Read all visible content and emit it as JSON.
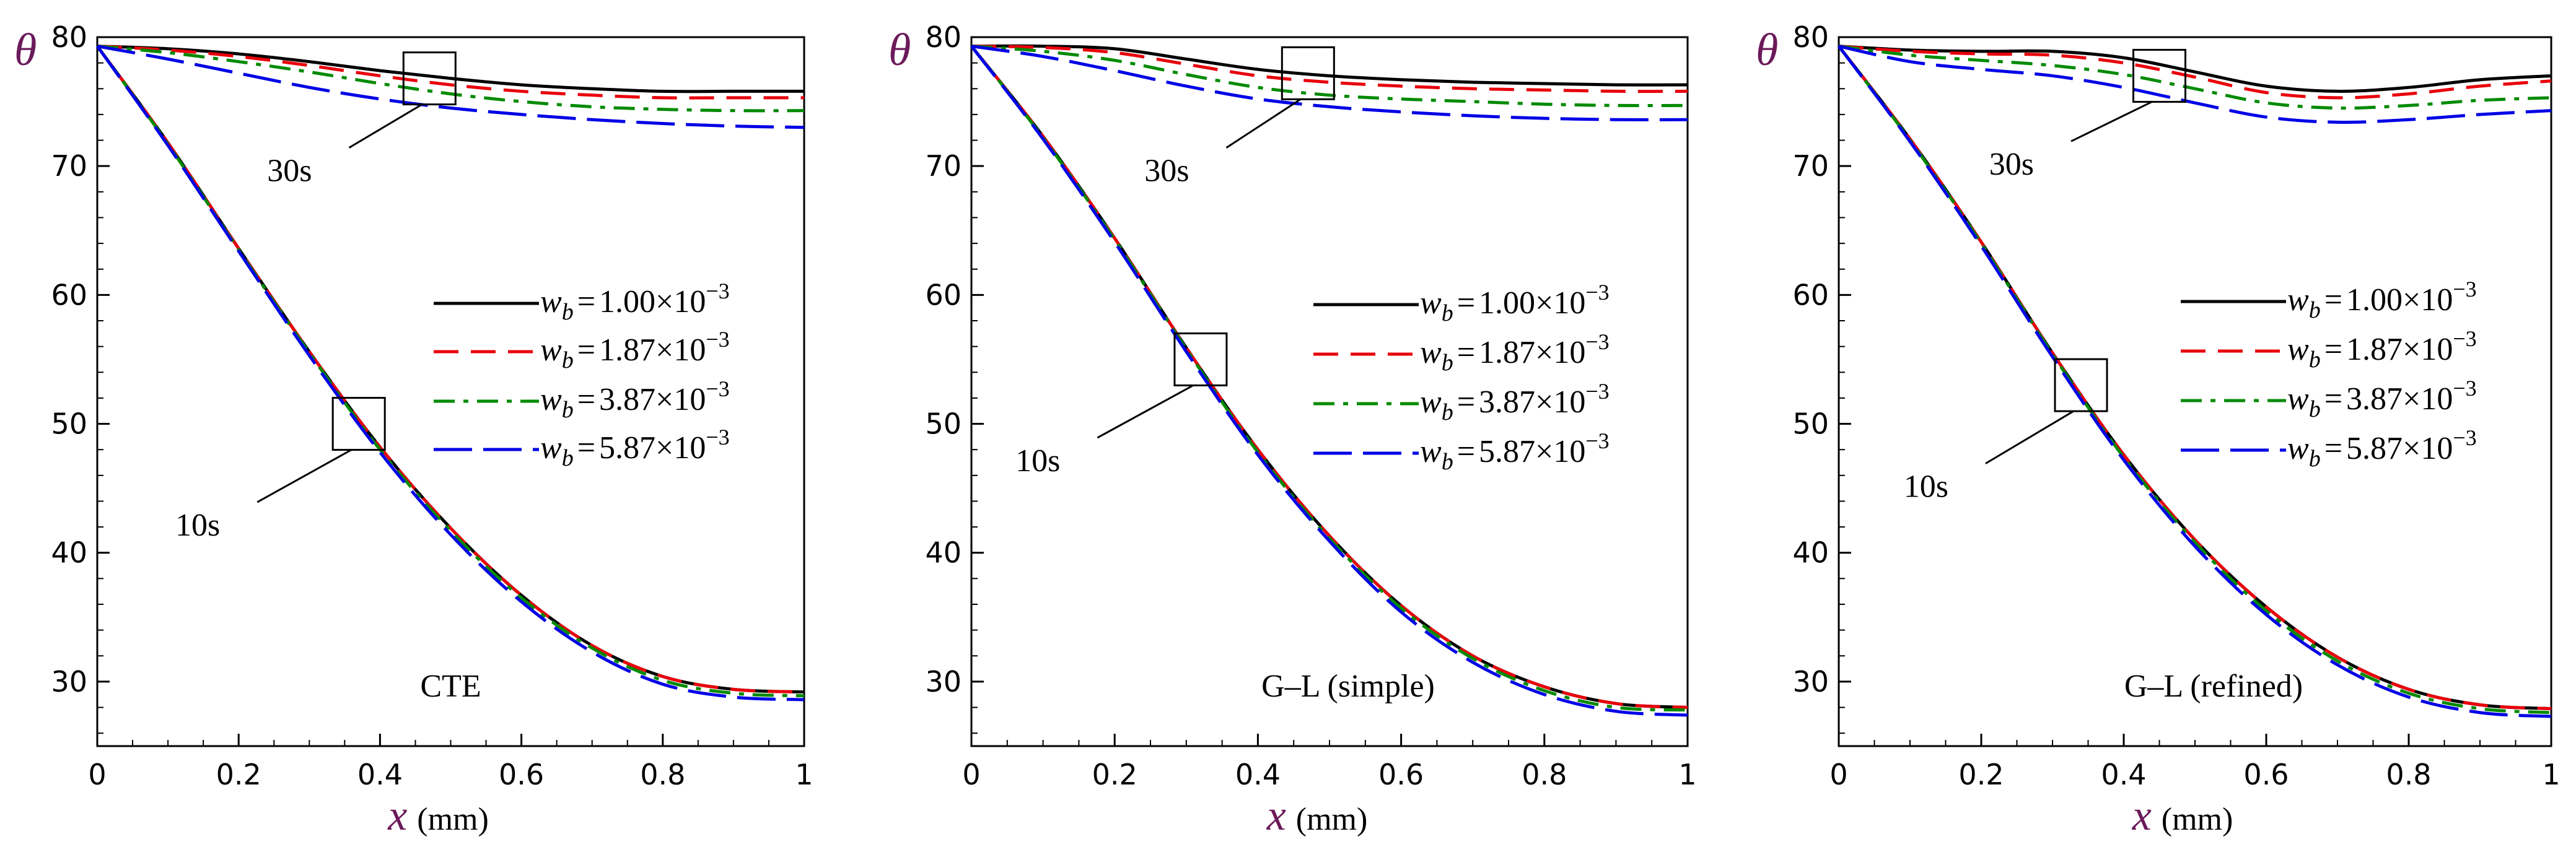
{
  "chart_data": [
    {
      "type": "line",
      "title": "CTE",
      "xlabel_var": "x",
      "xlabel_unit": "(mm)",
      "ylabel": "θ",
      "xlim": [
        0,
        1
      ],
      "ylim": [
        25,
        80
      ],
      "xticks": [
        "0",
        "0.2",
        "0.4",
        "0.6",
        "0.8",
        "1"
      ],
      "yticks": [
        "30",
        "40",
        "50",
        "60",
        "70",
        "80"
      ],
      "annotations": [
        {
          "label": "30s",
          "box_center": [
            0.47,
            76.8
          ],
          "label_at": [
            0.33,
            69.5
          ]
        },
        {
          "label": "10s",
          "box_center": [
            0.37,
            50.0
          ],
          "label_at": [
            0.2,
            42.0
          ]
        }
      ],
      "series": [
        {
          "name": "1.00",
          "group": "30s",
          "x": [
            0,
            0.1,
            0.2,
            0.3,
            0.4,
            0.5,
            0.6,
            0.7,
            0.8,
            0.9,
            1.0
          ],
          "values": [
            79.3,
            79.1,
            78.7,
            78.1,
            77.4,
            76.8,
            76.3,
            76.0,
            75.8,
            75.8,
            75.8
          ]
        },
        {
          "name": "1.87",
          "group": "30s",
          "x": [
            0,
            0.1,
            0.2,
            0.3,
            0.4,
            0.5,
            0.6,
            0.7,
            0.8,
            0.9,
            1.0
          ],
          "values": [
            79.3,
            79.0,
            78.5,
            77.8,
            77.0,
            76.3,
            75.8,
            75.5,
            75.3,
            75.3,
            75.3
          ]
        },
        {
          "name": "3.87",
          "group": "30s",
          "x": [
            0,
            0.1,
            0.2,
            0.3,
            0.4,
            0.5,
            0.6,
            0.7,
            0.8,
            0.9,
            1.0
          ],
          "values": [
            79.3,
            78.8,
            78.1,
            77.3,
            76.4,
            75.6,
            75.0,
            74.6,
            74.4,
            74.3,
            74.3
          ]
        },
        {
          "name": "5.87",
          "group": "30s",
          "x": [
            0,
            0.1,
            0.2,
            0.3,
            0.4,
            0.5,
            0.6,
            0.7,
            0.8,
            0.9,
            1.0
          ],
          "values": [
            79.3,
            78.3,
            77.2,
            76.1,
            75.2,
            74.5,
            74.0,
            73.6,
            73.3,
            73.1,
            73.0
          ]
        },
        {
          "name": "1.00",
          "group": "10s",
          "x": [
            0,
            0.1,
            0.2,
            0.3,
            0.4,
            0.5,
            0.6,
            0.7,
            0.8,
            0.9,
            1.0
          ],
          "values": [
            79.3,
            71.8,
            63.6,
            55.6,
            48.2,
            41.9,
            36.7,
            32.8,
            30.4,
            29.4,
            29.2
          ]
        },
        {
          "name": "1.87",
          "group": "10s",
          "x": [
            0,
            0.1,
            0.2,
            0.3,
            0.4,
            0.5,
            0.6,
            0.7,
            0.8,
            0.9,
            1.0
          ],
          "values": [
            79.3,
            71.8,
            63.6,
            55.6,
            48.2,
            41.9,
            36.7,
            32.8,
            30.4,
            29.4,
            29.2
          ]
        },
        {
          "name": "3.87",
          "group": "10s",
          "x": [
            0,
            0.1,
            0.2,
            0.3,
            0.4,
            0.5,
            0.6,
            0.7,
            0.8,
            0.9,
            1.0
          ],
          "values": [
            79.3,
            71.7,
            63.5,
            55.5,
            48.0,
            41.7,
            36.5,
            32.6,
            30.1,
            29.1,
            28.9
          ]
        },
        {
          "name": "5.87",
          "group": "10s",
          "x": [
            0,
            0.1,
            0.2,
            0.3,
            0.4,
            0.5,
            0.6,
            0.7,
            0.8,
            0.9,
            1.0
          ],
          "values": [
            79.3,
            71.6,
            63.4,
            55.3,
            47.8,
            41.4,
            36.2,
            32.3,
            29.8,
            28.8,
            28.6
          ]
        }
      ]
    },
    {
      "type": "line",
      "title": "G–L (simple)",
      "xlabel_var": "x",
      "xlabel_unit": "(mm)",
      "ylabel": "θ",
      "xlim": [
        0,
        1
      ],
      "ylim": [
        25,
        80
      ],
      "xticks": [
        "0",
        "0.2",
        "0.4",
        "0.6",
        "0.8",
        "1"
      ],
      "yticks": [
        "30",
        "40",
        "50",
        "60",
        "70",
        "80"
      ],
      "annotations": [
        {
          "label": "30s",
          "box_center": [
            0.47,
            77.2
          ],
          "label_at": [
            0.33,
            69.5
          ]
        },
        {
          "label": "10s",
          "box_center": [
            0.32,
            55.0
          ],
          "label_at": [
            0.15,
            47.0
          ]
        }
      ],
      "series": [
        {
          "name": "1.00",
          "group": "30s",
          "x": [
            0,
            0.1,
            0.2,
            0.3,
            0.4,
            0.5,
            0.6,
            0.7,
            0.8,
            0.9,
            1.0
          ],
          "values": [
            79.3,
            79.3,
            79.1,
            78.3,
            77.5,
            77.0,
            76.7,
            76.5,
            76.4,
            76.3,
            76.3
          ]
        },
        {
          "name": "1.87",
          "group": "30s",
          "x": [
            0,
            0.1,
            0.2,
            0.3,
            0.4,
            0.5,
            0.6,
            0.7,
            0.8,
            0.9,
            1.0
          ],
          "values": [
            79.3,
            79.2,
            78.8,
            77.9,
            77.0,
            76.5,
            76.2,
            76.0,
            75.9,
            75.8,
            75.8
          ]
        },
        {
          "name": "3.87",
          "group": "30s",
          "x": [
            0,
            0.1,
            0.2,
            0.3,
            0.4,
            0.5,
            0.6,
            0.7,
            0.8,
            0.9,
            1.0
          ],
          "values": [
            79.3,
            78.9,
            78.2,
            77.1,
            76.1,
            75.5,
            75.2,
            75.0,
            74.8,
            74.7,
            74.7
          ]
        },
        {
          "name": "5.87",
          "group": "30s",
          "x": [
            0,
            0.1,
            0.2,
            0.3,
            0.4,
            0.5,
            0.6,
            0.7,
            0.8,
            0.9,
            1.0
          ],
          "values": [
            79.3,
            78.5,
            77.4,
            76.2,
            75.2,
            74.6,
            74.2,
            73.9,
            73.7,
            73.6,
            73.6
          ]
        },
        {
          "name": "1.00",
          "group": "10s",
          "x": [
            0,
            0.1,
            0.2,
            0.3,
            0.4,
            0.5,
            0.6,
            0.7,
            0.8,
            0.9,
            1.0
          ],
          "values": [
            79.3,
            72.3,
            64.4,
            55.9,
            48.0,
            41.3,
            35.9,
            32.0,
            29.6,
            28.3,
            28.0
          ]
        },
        {
          "name": "1.87",
          "group": "10s",
          "x": [
            0,
            0.1,
            0.2,
            0.3,
            0.4,
            0.5,
            0.6,
            0.7,
            0.8,
            0.9,
            1.0
          ],
          "values": [
            79.3,
            72.3,
            64.4,
            55.9,
            48.0,
            41.3,
            35.9,
            32.0,
            29.6,
            28.3,
            28.0
          ]
        },
        {
          "name": "3.87",
          "group": "10s",
          "x": [
            0,
            0.1,
            0.2,
            0.3,
            0.4,
            0.5,
            0.6,
            0.7,
            0.8,
            0.9,
            1.0
          ],
          "values": [
            79.3,
            72.2,
            64.3,
            55.8,
            47.8,
            41.1,
            35.7,
            31.8,
            29.3,
            28.0,
            27.8
          ]
        },
        {
          "name": "5.87",
          "group": "10s",
          "x": [
            0,
            0.1,
            0.2,
            0.3,
            0.4,
            0.5,
            0.6,
            0.7,
            0.8,
            0.9,
            1.0
          ],
          "values": [
            79.3,
            72.1,
            64.1,
            55.6,
            47.6,
            40.9,
            35.4,
            31.5,
            29.0,
            27.7,
            27.4
          ]
        }
      ]
    },
    {
      "type": "line",
      "title": "G–L (refined)",
      "xlabel_var": "x",
      "xlabel_unit": "(mm)",
      "ylabel": "θ",
      "xlim": [
        0,
        1
      ],
      "ylim": [
        25,
        80
      ],
      "xticks": [
        "0",
        "0.2",
        "0.4",
        "0.6",
        "0.8",
        "1"
      ],
      "yticks": [
        "30",
        "40",
        "50",
        "60",
        "70",
        "80"
      ],
      "annotations": [
        {
          "label": "30s",
          "box_center": [
            0.45,
            77.0
          ],
          "label_at": [
            0.3,
            70.0
          ]
        },
        {
          "label": "10s",
          "box_center": [
            0.34,
            53.0
          ],
          "label_at": [
            0.18,
            45.0
          ]
        }
      ],
      "series": [
        {
          "name": "1.00",
          "group": "30s",
          "x": [
            0,
            0.1,
            0.2,
            0.3,
            0.4,
            0.5,
            0.6,
            0.7,
            0.8,
            0.9,
            1.0
          ],
          "values": [
            79.3,
            79.0,
            78.9,
            78.9,
            78.4,
            77.3,
            76.2,
            75.8,
            76.1,
            76.7,
            77.0
          ]
        },
        {
          "name": "1.87",
          "group": "30s",
          "x": [
            0,
            0.1,
            0.2,
            0.3,
            0.4,
            0.5,
            0.6,
            0.7,
            0.8,
            0.9,
            1.0
          ],
          "values": [
            79.3,
            78.9,
            78.7,
            78.6,
            78.0,
            76.9,
            75.7,
            75.3,
            75.6,
            76.2,
            76.6
          ]
        },
        {
          "name": "3.87",
          "group": "30s",
          "x": [
            0,
            0.1,
            0.2,
            0.3,
            0.4,
            0.5,
            0.6,
            0.7,
            0.8,
            0.9,
            1.0
          ],
          "values": [
            79.3,
            78.6,
            78.2,
            77.8,
            77.1,
            76.0,
            74.9,
            74.5,
            74.7,
            75.1,
            75.3
          ]
        },
        {
          "name": "5.87",
          "group": "30s",
          "x": [
            0,
            0.1,
            0.2,
            0.3,
            0.4,
            0.5,
            0.6,
            0.7,
            0.8,
            0.9,
            1.0
          ],
          "values": [
            79.3,
            78.1,
            77.5,
            77.0,
            76.1,
            74.9,
            73.8,
            73.4,
            73.6,
            74.0,
            74.3
          ]
        },
        {
          "name": "1.00",
          "group": "10s",
          "x": [
            0,
            0.1,
            0.2,
            0.3,
            0.4,
            0.5,
            0.6,
            0.7,
            0.8,
            0.9,
            1.0
          ],
          "values": [
            79.3,
            72.1,
            64.1,
            55.5,
            47.6,
            41.0,
            35.8,
            31.9,
            29.4,
            28.2,
            27.9
          ]
        },
        {
          "name": "1.87",
          "group": "10s",
          "x": [
            0,
            0.1,
            0.2,
            0.3,
            0.4,
            0.5,
            0.6,
            0.7,
            0.8,
            0.9,
            1.0
          ],
          "values": [
            79.3,
            72.1,
            64.1,
            55.5,
            47.6,
            41.0,
            35.8,
            31.9,
            29.4,
            28.2,
            27.9
          ]
        },
        {
          "name": "3.87",
          "group": "10s",
          "x": [
            0,
            0.1,
            0.2,
            0.3,
            0.4,
            0.5,
            0.6,
            0.7,
            0.8,
            0.9,
            1.0
          ],
          "values": [
            79.3,
            72.0,
            64.0,
            55.4,
            47.4,
            40.8,
            35.5,
            31.6,
            29.1,
            27.9,
            27.6
          ]
        },
        {
          "name": "5.87",
          "group": "10s",
          "x": [
            0,
            0.1,
            0.2,
            0.3,
            0.4,
            0.5,
            0.6,
            0.7,
            0.8,
            0.9,
            1.0
          ],
          "values": [
            79.3,
            71.9,
            63.8,
            55.2,
            47.2,
            40.5,
            35.2,
            31.3,
            28.8,
            27.6,
            27.3
          ]
        }
      ]
    }
  ],
  "legend": {
    "var": "w",
    "sub": "b",
    "equals": "=",
    "times": "×10",
    "exponent": "−3",
    "entries": [
      {
        "value": "1.00",
        "color": "#000000",
        "style": "solid"
      },
      {
        "value": "1.87",
        "color": "#e8000b",
        "style": "dashed"
      },
      {
        "value": "3.87",
        "color": "#008a00",
        "style": "dashdot"
      },
      {
        "value": "5.87",
        "color": "#0000e6",
        "style": "longdash"
      }
    ]
  }
}
